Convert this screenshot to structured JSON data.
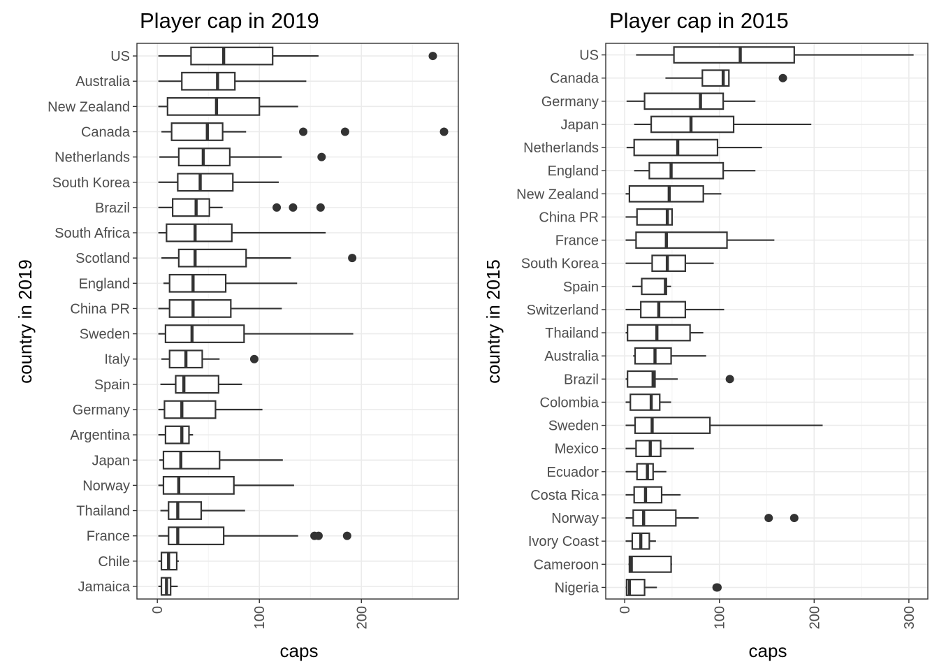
{
  "chart_data": [
    {
      "type": "boxplot",
      "title": "Player cap in 2019",
      "xlabel": "caps",
      "ylabel": "country in 2019",
      "xlim": [
        -20,
        295
      ],
      "xticks": [
        0,
        100,
        200
      ],
      "grid": true,
      "categories": [
        "US",
        "Australia",
        "New Zealand",
        "Canada",
        "Netherlands",
        "South Korea",
        "Brazil",
        "South Africa",
        "Scotland",
        "England",
        "China PR",
        "Sweden",
        "Italy",
        "Spain",
        "Germany",
        "Argentina",
        "Japan",
        "Norway",
        "Thailand",
        "France",
        "Chile",
        "Jamaica"
      ],
      "boxes": [
        {
          "min": 1,
          "q1": 33,
          "median": 65,
          "q3": 113,
          "max": 158,
          "outliers": [
            270
          ]
        },
        {
          "min": 1,
          "q1": 24,
          "median": 59,
          "q3": 76,
          "max": 146,
          "outliers": []
        },
        {
          "min": 1,
          "q1": 10,
          "median": 58,
          "q3": 100,
          "max": 138,
          "outliers": []
        },
        {
          "min": 4,
          "q1": 14,
          "median": 49,
          "q3": 64,
          "max": 87,
          "outliers": [
            143,
            184,
            281
          ]
        },
        {
          "min": 2,
          "q1": 21,
          "median": 45,
          "q3": 71,
          "max": 122,
          "outliers": [
            161
          ]
        },
        {
          "min": 1,
          "q1": 20,
          "median": 42,
          "q3": 74,
          "max": 119,
          "outliers": []
        },
        {
          "min": 1,
          "q1": 15,
          "median": 38,
          "q3": 51,
          "max": 64,
          "outliers": [
            117,
            133,
            160
          ]
        },
        {
          "min": 1,
          "q1": 9,
          "median": 37,
          "q3": 73,
          "max": 165,
          "outliers": []
        },
        {
          "min": 4,
          "q1": 21,
          "median": 37,
          "q3": 87,
          "max": 131,
          "outliers": [
            191
          ]
        },
        {
          "min": 6,
          "q1": 12,
          "median": 35,
          "q3": 67,
          "max": 137,
          "outliers": []
        },
        {
          "min": 1,
          "q1": 12,
          "median": 35,
          "q3": 72,
          "max": 122,
          "outliers": []
        },
        {
          "min": 1,
          "q1": 8,
          "median": 34,
          "q3": 85,
          "max": 192,
          "outliers": []
        },
        {
          "min": 4,
          "q1": 12,
          "median": 28,
          "q3": 44,
          "max": 61,
          "outliers": [
            95
          ]
        },
        {
          "min": 3,
          "q1": 18,
          "median": 26,
          "q3": 60,
          "max": 83,
          "outliers": []
        },
        {
          "min": 1,
          "q1": 7,
          "median": 24,
          "q3": 57,
          "max": 103,
          "outliers": []
        },
        {
          "min": 1,
          "q1": 8,
          "median": 24,
          "q3": 31,
          "max": 35,
          "outliers": []
        },
        {
          "min": 2,
          "q1": 6,
          "median": 23,
          "q3": 61,
          "max": 123,
          "outliers": []
        },
        {
          "min": 1,
          "q1": 6,
          "median": 21,
          "q3": 75,
          "max": 134,
          "outliers": []
        },
        {
          "min": 3,
          "q1": 11,
          "median": 20,
          "q3": 43,
          "max": 86,
          "outliers": []
        },
        {
          "min": 1,
          "q1": 11,
          "median": 20,
          "q3": 65,
          "max": 138,
          "outliers": [
            154,
            158,
            186
          ]
        },
        {
          "min": 1,
          "q1": 4,
          "median": 11,
          "q3": 19,
          "max": 21,
          "outliers": []
        },
        {
          "min": 1,
          "q1": 4,
          "median": 9,
          "q3": 13,
          "max": 20,
          "outliers": []
        }
      ]
    },
    {
      "type": "boxplot",
      "title": "Player cap in 2015",
      "xlabel": "caps",
      "ylabel": "country in 2015",
      "xlim": [
        -20,
        320
      ],
      "xticks": [
        0,
        100,
        200,
        300
      ],
      "grid": true,
      "categories": [
        "US",
        "Canada",
        "Germany",
        "Japan",
        "Netherlands",
        "England",
        "New Zealand",
        "China PR",
        "France",
        "South Korea",
        "Spain",
        "Switzerland",
        "Thailand",
        "Australia",
        "Brazil",
        "Colombia",
        "Sweden",
        "Mexico",
        "Ecuador",
        "Costa Rica",
        "Norway",
        "Ivory Coast",
        "Cameroon",
        "Nigeria"
      ],
      "boxes": [
        {
          "min": 12,
          "q1": 52,
          "median": 122,
          "q3": 179,
          "max": 305,
          "outliers": []
        },
        {
          "min": 43,
          "q1": 82,
          "median": 104,
          "q3": 110,
          "max": 110,
          "outliers": [
            167
          ]
        },
        {
          "min": 2,
          "q1": 21,
          "median": 80,
          "q3": 104,
          "max": 138,
          "outliers": []
        },
        {
          "min": 10,
          "q1": 28,
          "median": 70,
          "q3": 115,
          "max": 197,
          "outliers": []
        },
        {
          "min": 2,
          "q1": 10,
          "median": 56,
          "q3": 98,
          "max": 145,
          "outliers": []
        },
        {
          "min": 10,
          "q1": 26,
          "median": 49,
          "q3": 104,
          "max": 138,
          "outliers": []
        },
        {
          "min": 1,
          "q1": 5,
          "median": 47,
          "q3": 83,
          "max": 102,
          "outliers": []
        },
        {
          "min": 1,
          "q1": 13,
          "median": 45,
          "q3": 50,
          "max": 50,
          "outliers": []
        },
        {
          "min": 1,
          "q1": 12,
          "median": 44,
          "q3": 108,
          "max": 158,
          "outliers": []
        },
        {
          "min": 1,
          "q1": 29,
          "median": 45,
          "q3": 64,
          "max": 94,
          "outliers": []
        },
        {
          "min": 8,
          "q1": 18,
          "median": 43,
          "q3": 44,
          "max": 49,
          "outliers": []
        },
        {
          "min": 1,
          "q1": 17,
          "median": 36,
          "q3": 64,
          "max": 105,
          "outliers": []
        },
        {
          "min": 1,
          "q1": 3,
          "median": 34,
          "q3": 69,
          "max": 83,
          "outliers": []
        },
        {
          "min": 9,
          "q1": 11,
          "median": 32,
          "q3": 49,
          "max": 86,
          "outliers": []
        },
        {
          "min": 1,
          "q1": 3,
          "median": 30,
          "q3": 32,
          "max": 56,
          "outliers": [
            111
          ]
        },
        {
          "min": 1,
          "q1": 6,
          "median": 28,
          "q3": 37,
          "max": 49,
          "outliers": []
        },
        {
          "min": 1,
          "q1": 11,
          "median": 29,
          "q3": 90,
          "max": 209,
          "outliers": []
        },
        {
          "min": 1,
          "q1": 12,
          "median": 27,
          "q3": 38,
          "max": 73,
          "outliers": []
        },
        {
          "min": 1,
          "q1": 13,
          "median": 24,
          "q3": 30,
          "max": 44,
          "outliers": []
        },
        {
          "min": 1,
          "q1": 10,
          "median": 22,
          "q3": 39,
          "max": 59,
          "outliers": []
        },
        {
          "min": 1,
          "q1": 9,
          "median": 20,
          "q3": 54,
          "max": 78,
          "outliers": [
            152,
            179
          ]
        },
        {
          "min": 1,
          "q1": 8,
          "median": 17,
          "q3": 26,
          "max": 33,
          "outliers": []
        },
        {
          "min": 4,
          "q1": 5,
          "median": 7,
          "q3": 49,
          "max": 50,
          "outliers": []
        },
        {
          "min": 1,
          "q1": 2,
          "median": 5,
          "q3": 21,
          "max": 34,
          "outliers": [
            97,
            98
          ]
        }
      ]
    }
  ]
}
